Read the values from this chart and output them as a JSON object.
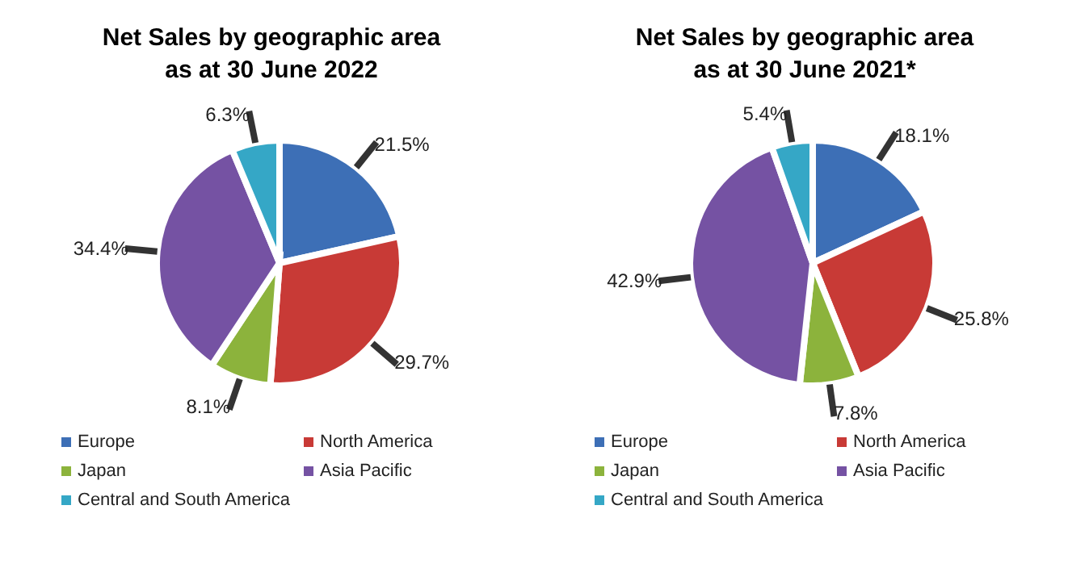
{
  "chart_data": [
    {
      "type": "pie",
      "title": "Net Sales by geographic area\nas at 30 June 2022",
      "categories": [
        "Europe",
        "North America",
        "Japan",
        "Asia Pacific",
        "Central and South America"
      ],
      "values": [
        21.5,
        29.7,
        8.1,
        34.4,
        6.3
      ],
      "value_labels": [
        "21.5%",
        "29.7%",
        "8.1%",
        "34.4%",
        "6.3%"
      ],
      "colors": [
        "#3d6fb6",
        "#c83a36",
        "#8cb33c",
        "#7552a3",
        "#35a7c6"
      ],
      "legend": "bottom"
    },
    {
      "type": "pie",
      "title": "Net Sales by geographic area\nas at 30 June 2021*",
      "categories": [
        "Europe",
        "North America",
        "Japan",
        "Asia Pacific",
        "Central and South America"
      ],
      "values": [
        18.1,
        25.8,
        7.8,
        42.9,
        5.4
      ],
      "value_labels": [
        "18.1%",
        "25.8%",
        "7.8%",
        "42.9%",
        "5.4%"
      ],
      "colors": [
        "#3d6fb6",
        "#c83a36",
        "#8cb33c",
        "#7552a3",
        "#35a7c6"
      ],
      "legend": "bottom"
    }
  ]
}
